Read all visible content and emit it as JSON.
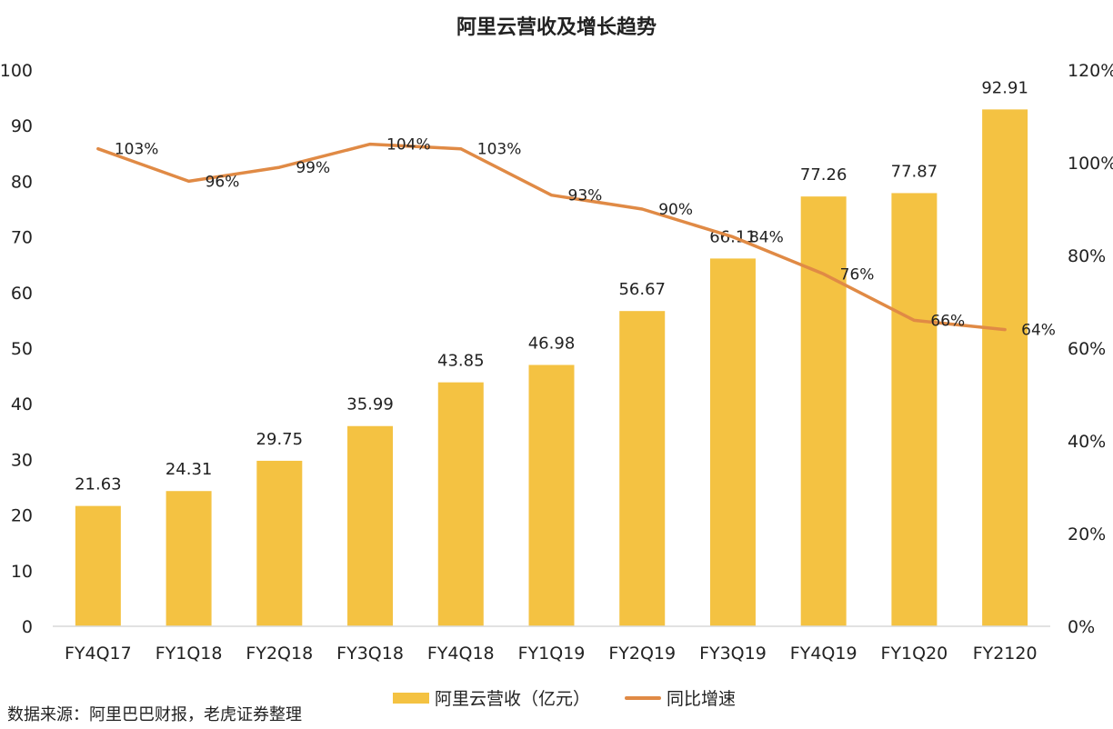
{
  "chart_data": {
    "type": "bar",
    "title": "阿里云营收及增长趋势",
    "categories": [
      "FY4Q17",
      "FY1Q18",
      "FY2Q18",
      "FY3Q18",
      "FY4Q18",
      "FY1Q19",
      "FY2Q19",
      "FY3Q19",
      "FY4Q19",
      "FY1Q20",
      "FY2120"
    ],
    "series": [
      {
        "name": "阿里云营收（亿元）",
        "type": "bar",
        "axis": "left",
        "color": "#F4C242",
        "values": [
          21.63,
          24.31,
          29.75,
          35.99,
          43.85,
          46.98,
          56.67,
          66.11,
          77.26,
          77.87,
          92.91
        ],
        "labels": [
          "21.63",
          "24.31",
          "29.75",
          "35.99",
          "43.85",
          "46.98",
          "56.67",
          "66.11",
          "77.26",
          "77.87",
          "92.91"
        ]
      },
      {
        "name": "同比增速",
        "type": "line",
        "axis": "right",
        "color": "#E08A45",
        "values": [
          103,
          96,
          99,
          104,
          103,
          93,
          90,
          84,
          76,
          66,
          64
        ],
        "labels": [
          "103%",
          "96%",
          "99%",
          "104%",
          "103%",
          "93%",
          "90%",
          "84%",
          "76%",
          "66%",
          "64%"
        ]
      }
    ],
    "ylim": [
      0,
      100
    ],
    "yticks": [
      0,
      10,
      20,
      30,
      40,
      50,
      60,
      70,
      80,
      90,
      100
    ],
    "y2lim": [
      0,
      120
    ],
    "y2ticks": [
      "0%",
      "20%",
      "40%",
      "60%",
      "80%",
      "100%",
      "120%"
    ],
    "grid": false,
    "legend_position": "bottom"
  },
  "source_note": "数据来源：阿里巴巴财报，老虎证券整理"
}
